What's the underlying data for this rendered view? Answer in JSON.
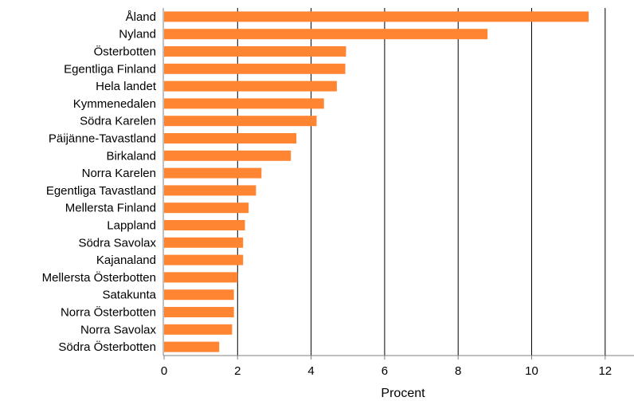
{
  "chart_data": {
    "type": "bar",
    "orientation": "horizontal",
    "categories": [
      "Åland",
      "Nyland",
      "Österbotten",
      "Egentliga Finland",
      "Hela landet",
      "Kymmenedalen",
      "Södra Karelen",
      "Päijänne-Tavastland",
      "Birkaland",
      "Norra Karelen",
      "Egentliga Tavastland",
      "Mellersta Finland",
      "Lappland",
      "Södra Savolax",
      "Kajanaland",
      "Mellersta Österbotten",
      "Satakunta",
      "Norra Österbotten",
      "Norra Savolax",
      "Södra Österbotten"
    ],
    "values": [
      11.55,
      8.8,
      4.95,
      4.93,
      4.7,
      4.35,
      4.15,
      3.6,
      3.45,
      2.65,
      2.5,
      2.3,
      2.2,
      2.15,
      2.15,
      2.0,
      1.9,
      1.9,
      1.85,
      1.5
    ],
    "title": "",
    "xlabel": "Procent",
    "ylabel": "",
    "xlim": [
      0,
      12.8
    ],
    "xticks": [
      0,
      2,
      4,
      6,
      8,
      10,
      12
    ],
    "xtick_labels": [
      "0",
      "2",
      "4",
      "6",
      "8",
      "10",
      "12"
    ],
    "grid": "vertical",
    "legend": "none",
    "colors": {
      "bar": "#ff8533",
      "grid": "#000000",
      "axis": "#808080"
    }
  }
}
